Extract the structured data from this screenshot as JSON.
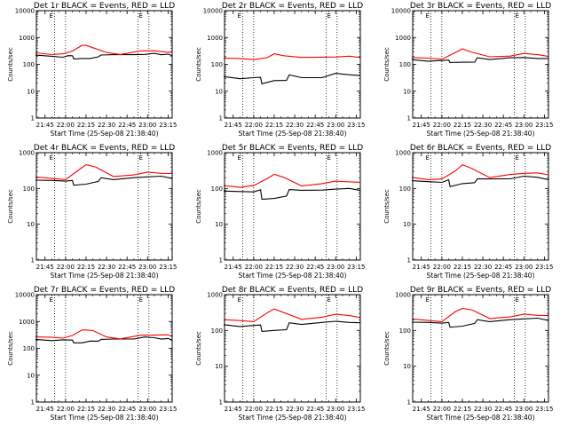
{
  "colors": {
    "background": "#ffffff",
    "events": "#000000",
    "lld": "#ff0000",
    "axes": "#000000"
  },
  "chart_data": [
    {
      "type": "line",
      "title": "Det 1r BLACK = Events, RED = LLD",
      "xlabel": "Start Time (25-Sep-08 21:38:40)",
      "ylabel": "Counts/sec",
      "xlim": [
        "21:38:40",
        "23:18:00"
      ],
      "ylim": [
        1,
        10000
      ],
      "yscale": "log",
      "xticks": [
        "21:45",
        "22:00",
        "22:15",
        "22:30",
        "22:45",
        "23:00",
        "23:15"
      ],
      "yticks": [
        "1",
        "10",
        "100",
        "1000",
        "10000"
      ],
      "vlines": [
        "21:52",
        "22:00",
        "22:53",
        "23:01"
      ],
      "vline_labels": [
        "E",
        "E"
      ],
      "series": [
        {
          "name": "BLACK = Events",
          "color": "#000000",
          "x": [
            "21:38",
            "21:50",
            "21:58",
            "22:02",
            "22:05",
            "22:06",
            "22:12",
            "22:18",
            "22:24",
            "22:26",
            "22:35",
            "22:50",
            "22:58",
            "23:05",
            "23:10",
            "23:15",
            "23:18"
          ],
          "values": [
            220,
            200,
            195,
            205,
            215,
            150,
            165,
            175,
            185,
            230,
            215,
            230,
            250,
            250,
            235,
            225,
            210
          ]
        },
        {
          "name": "RED = LLD",
          "color": "#ff0000",
          "x": [
            "21:38",
            "21:50",
            "21:58",
            "22:05",
            "22:12",
            "22:15",
            "22:20",
            "22:30",
            "22:40",
            "22:55",
            "23:05",
            "23:15",
            "23:18"
          ],
          "values": [
            270,
            245,
            240,
            320,
            480,
            510,
            440,
            270,
            240,
            300,
            320,
            300,
            280
          ]
        }
      ]
    },
    {
      "type": "line",
      "title": "Det 2r BLACK = Events, RED = LLD",
      "xlabel": "Start Time (25-Sep-08 21:38:40)",
      "ylabel": "Counts/sec",
      "xlim": [
        "21:38:40",
        "23:18:00"
      ],
      "ylim": [
        1,
        10000
      ],
      "yscale": "log",
      "xticks": [
        "21:45",
        "22:00",
        "22:15",
        "22:30",
        "22:45",
        "23:00",
        "23:15"
      ],
      "yticks": [
        "1",
        "10",
        "100",
        "1000",
        "10000"
      ],
      "vlines": [
        "21:52",
        "22:00",
        "22:53",
        "23:01"
      ],
      "vline_labels": [
        "E",
        "E"
      ],
      "series": [
        {
          "name": "BLACK = Events",
          "color": "#000000",
          "x": [
            "21:38",
            "21:50",
            "22:00",
            "22:05",
            "22:06",
            "22:15",
            "22:24",
            "22:26",
            "22:35",
            "22:50",
            "23:00",
            "23:10",
            "23:18"
          ],
          "values": [
            35,
            30,
            30,
            33,
            20,
            24,
            26,
            38,
            32,
            34,
            45,
            42,
            36
          ]
        },
        {
          "name": "RED = LLD",
          "color": "#ff0000",
          "x": [
            "21:38",
            "21:50",
            "22:00",
            "22:10",
            "22:15",
            "22:22",
            "22:35",
            "22:50",
            "23:00",
            "23:10",
            "23:18"
          ],
          "values": [
            170,
            155,
            150,
            190,
            240,
            215,
            170,
            185,
            200,
            195,
            185
          ]
        }
      ]
    },
    {
      "type": "line",
      "title": "Det 3r BLACK = Events, RED = LLD",
      "xlabel": "Start Time (25-Sep-08 21:38:40)",
      "ylabel": "Counts/sec",
      "xlim": [
        "21:38:40",
        "23:18:00"
      ],
      "ylim": [
        1,
        10000
      ],
      "yscale": "log",
      "xticks": [
        "21:45",
        "22:00",
        "22:15",
        "22:30",
        "22:45",
        "23:00",
        "23:15"
      ],
      "yticks": [
        "1",
        "10",
        "100",
        "1000",
        "10000"
      ],
      "vlines": [
        "21:52",
        "22:00",
        "22:53",
        "23:01"
      ],
      "vline_labels": [
        "E",
        "E"
      ],
      "series": [
        {
          "name": "BLACK = Events",
          "color": "#000000",
          "x": [
            "21:38",
            "21:50",
            "22:00",
            "22:05",
            "22:06",
            "22:15",
            "22:24",
            "22:26",
            "22:35",
            "22:50",
            "23:00",
            "23:10",
            "23:18"
          ],
          "values": [
            150,
            140,
            135,
            150,
            110,
            120,
            130,
            170,
            155,
            165,
            180,
            175,
            160
          ]
        },
        {
          "name": "RED = LLD",
          "color": "#ff0000",
          "x": [
            "21:38",
            "21:50",
            "22:00",
            "22:10",
            "22:15",
            "22:22",
            "22:35",
            "22:50",
            "23:00",
            "23:10",
            "23:18"
          ],
          "values": [
            180,
            165,
            160,
            260,
            380,
            300,
            185,
            210,
            240,
            230,
            210
          ]
        }
      ]
    },
    {
      "type": "line",
      "title": "Det 4r BLACK = Events, RED = LLD",
      "xlabel": "Start Time (25-Sep-08 21:38:40)",
      "ylabel": "Counts/sec",
      "xlim": [
        "21:38:40",
        "23:18:00"
      ],
      "ylim": [
        1,
        1000
      ],
      "yscale": "log",
      "xticks": [
        "21:45",
        "22:00",
        "22:15",
        "22:30",
        "22:45",
        "23:00",
        "23:15"
      ],
      "yticks": [
        "1",
        "10",
        "100",
        "1000"
      ],
      "vlines": [
        "21:52",
        "22:00",
        "22:53",
        "23:01"
      ],
      "vline_labels": [
        "E",
        "E"
      ],
      "series": [
        {
          "name": "BLACK = Events",
          "color": "#000000",
          "x": [
            "21:38",
            "21:50",
            "22:00",
            "22:05",
            "22:06",
            "22:15",
            "22:24",
            "22:26",
            "22:35",
            "22:50",
            "23:00",
            "23:10",
            "23:18"
          ],
          "values": [
            170,
            160,
            160,
            175,
            120,
            135,
            150,
            200,
            185,
            195,
            215,
            210,
            190
          ]
        },
        {
          "name": "RED = LLD",
          "color": "#ff0000",
          "x": [
            "21:38",
            "21:50",
            "22:00",
            "22:10",
            "22:15",
            "22:22",
            "22:35",
            "22:50",
            "23:00",
            "23:10",
            "23:18"
          ],
          "values": [
            210,
            190,
            185,
            330,
            470,
            380,
            215,
            250,
            280,
            270,
            250
          ]
        }
      ]
    },
    {
      "type": "line",
      "title": "Det 5r BLACK = Events, RED = LLD",
      "xlabel": "Start Time (25-Sep-08 21:38:40)",
      "ylabel": "Counts/sec",
      "xlim": [
        "21:38:40",
        "23:18:00"
      ],
      "ylim": [
        1,
        1000
      ],
      "yscale": "log",
      "xticks": [
        "21:45",
        "22:00",
        "22:15",
        "22:30",
        "22:45",
        "23:00",
        "23:15"
      ],
      "yticks": [
        "1",
        "10",
        "100",
        "1000"
      ],
      "vlines": [
        "21:52",
        "22:00",
        "22:53",
        "23:01"
      ],
      "vline_labels": [
        "E",
        "E"
      ],
      "series": [
        {
          "name": "BLACK = Events",
          "color": "#000000",
          "x": [
            "21:38",
            "21:50",
            "22:00",
            "22:05",
            "22:06",
            "22:15",
            "22:24",
            "22:26",
            "22:35",
            "22:50",
            "23:00",
            "23:10",
            "23:18"
          ],
          "values": [
            85,
            80,
            82,
            88,
            50,
            55,
            60,
            95,
            85,
            90,
            100,
            98,
            90
          ]
        },
        {
          "name": "RED = LLD",
          "color": "#ff0000",
          "x": [
            "21:38",
            "21:50",
            "22:00",
            "22:10",
            "22:15",
            "22:22",
            "22:35",
            "22:50",
            "23:00",
            "23:10",
            "23:18"
          ],
          "values": [
            120,
            110,
            115,
            190,
            260,
            200,
            120,
            130,
            160,
            160,
            145
          ]
        }
      ]
    },
    {
      "type": "line",
      "title": "Det 6r BLACK = Events, RED = LLD",
      "xlabel": "Start Time (25-Sep-08 21:38:40)",
      "ylabel": "Counts/sec",
      "xlim": [
        "21:38:40",
        "23:18:00"
      ],
      "ylim": [
        1,
        1000
      ],
      "yscale": "log",
      "xticks": [
        "21:45",
        "22:00",
        "22:15",
        "22:30",
        "22:45",
        "23:00",
        "23:15"
      ],
      "yticks": [
        "1",
        "10",
        "100",
        "1000"
      ],
      "vlines": [
        "21:52",
        "22:00",
        "22:53",
        "23:01"
      ],
      "vline_labels": [
        "E",
        "E"
      ],
      "series": [
        {
          "name": "BLACK = Events",
          "color": "#000000",
          "x": [
            "21:38",
            "21:50",
            "22:00",
            "22:05",
            "22:06",
            "22:15",
            "22:24",
            "22:26",
            "22:35",
            "22:50",
            "23:00",
            "23:10",
            "23:18"
          ],
          "values": [
            165,
            155,
            155,
            170,
            115,
            130,
            145,
            195,
            180,
            190,
            210,
            205,
            185
          ]
        },
        {
          "name": "RED = LLD",
          "color": "#ff0000",
          "x": [
            "21:38",
            "21:50",
            "22:00",
            "22:10",
            "22:15",
            "22:22",
            "22:35",
            "22:50",
            "23:00",
            "23:10",
            "23:18"
          ],
          "values": [
            205,
            185,
            180,
            320,
            440,
            360,
            210,
            240,
            270,
            260,
            240
          ]
        }
      ]
    },
    {
      "type": "line",
      "title": "Det 7r BLACK = Events, RED = LLD",
      "xlabel": "Start Time (25-Sep-08 21:38:40)",
      "ylabel": "Counts/sec",
      "xlim": [
        "21:38:40",
        "23:18:00"
      ],
      "ylim": [
        1,
        10000
      ],
      "yscale": "log",
      "xticks": [
        "21:45",
        "22:00",
        "22:15",
        "22:30",
        "22:45",
        "23:00",
        "23:15"
      ],
      "yticks": [
        "1",
        "10",
        "100",
        "1000",
        "10000"
      ],
      "vlines": [
        "21:52",
        "22:00",
        "22:53",
        "23:01"
      ],
      "vline_labels": [
        "E",
        "E"
      ],
      "series": [
        {
          "name": "BLACK = Events",
          "color": "#000000",
          "x": [
            "21:38",
            "21:50",
            "21:58",
            "22:02",
            "22:05",
            "22:06",
            "22:12",
            "22:18",
            "22:24",
            "22:26",
            "22:35",
            "22:50",
            "22:58",
            "23:05",
            "23:10",
            "23:15",
            "23:18"
          ],
          "values": [
            215,
            200,
            195,
            205,
            215,
            155,
            165,
            175,
            185,
            230,
            215,
            230,
            250,
            250,
            235,
            225,
            210
          ]
        },
        {
          "name": "RED = LLD",
          "color": "#ff0000",
          "x": [
            "21:38",
            "21:50",
            "21:58",
            "22:05",
            "22:12",
            "22:15",
            "22:20",
            "22:30",
            "22:40",
            "22:55",
            "23:05",
            "23:15",
            "23:18"
          ],
          "values": [
            265,
            245,
            240,
            320,
            470,
            500,
            430,
            265,
            240,
            300,
            320,
            300,
            275
          ]
        }
      ]
    },
    {
      "type": "line",
      "title": "Det 8r BLACK = Events, RED = LLD",
      "xlabel": "Start Time (25-Sep-08 21:38:40)",
      "ylabel": "Counts/sec",
      "xlim": [
        "21:38:40",
        "23:18:00"
      ],
      "ylim": [
        1,
        1000
      ],
      "yscale": "log",
      "xticks": [
        "21:45",
        "22:00",
        "22:15",
        "22:30",
        "22:45",
        "23:00",
        "23:15"
      ],
      "yticks": [
        "1",
        "10",
        "100",
        "1000"
      ],
      "vlines": [
        "21:52",
        "22:00",
        "22:53",
        "23:01"
      ],
      "vline_labels": [
        "E",
        "E"
      ],
      "series": [
        {
          "name": "BLACK = Events",
          "color": "#000000",
          "x": [
            "21:38",
            "21:50",
            "22:00",
            "22:05",
            "22:06",
            "22:15",
            "22:24",
            "22:26",
            "22:35",
            "22:50",
            "23:00",
            "23:10",
            "23:18"
          ],
          "values": [
            145,
            135,
            135,
            145,
            90,
            100,
            110,
            160,
            150,
            160,
            180,
            175,
            160
          ]
        },
        {
          "name": "RED = LLD",
          "color": "#ff0000",
          "x": [
            "21:38",
            "21:50",
            "22:00",
            "22:10",
            "22:15",
            "22:22",
            "22:35",
            "22:50",
            "23:00",
            "23:10",
            "23:18"
          ],
          "values": [
            200,
            185,
            180,
            300,
            400,
            330,
            200,
            240,
            270,
            260,
            240
          ]
        }
      ]
    },
    {
      "type": "line",
      "title": "Det 9r BLACK = Events, RED = LLD",
      "xlabel": "Start Time (25-Sep-08 21:38:40)",
      "ylabel": "Counts/sec",
      "xlim": [
        "21:38:40",
        "23:18:00"
      ],
      "ylim": [
        1,
        1000
      ],
      "yscale": "log",
      "xticks": [
        "21:45",
        "22:00",
        "22:15",
        "22:30",
        "22:45",
        "23:00",
        "23:15"
      ],
      "yticks": [
        "1",
        "10",
        "100",
        "1000"
      ],
      "vlines": [
        "21:52",
        "22:00",
        "22:53",
        "23:01"
      ],
      "vline_labels": [
        "E",
        "E"
      ],
      "series": [
        {
          "name": "BLACK = Events",
          "color": "#000000",
          "x": [
            "21:38",
            "21:50",
            "22:00",
            "22:05",
            "22:06",
            "22:15",
            "22:24",
            "22:26",
            "22:35",
            "22:50",
            "23:00",
            "23:10",
            "23:18"
          ],
          "values": [
            170,
            160,
            160,
            175,
            120,
            135,
            150,
            200,
            185,
            195,
            215,
            210,
            190
          ]
        },
        {
          "name": "RED = LLD",
          "color": "#ff0000",
          "x": [
            "21:38",
            "21:50",
            "22:00",
            "22:10",
            "22:15",
            "22:22",
            "22:35",
            "22:50",
            "23:00",
            "23:10",
            "23:18"
          ],
          "values": [
            210,
            190,
            185,
            330,
            420,
            360,
            215,
            250,
            280,
            270,
            250
          ]
        }
      ]
    }
  ]
}
